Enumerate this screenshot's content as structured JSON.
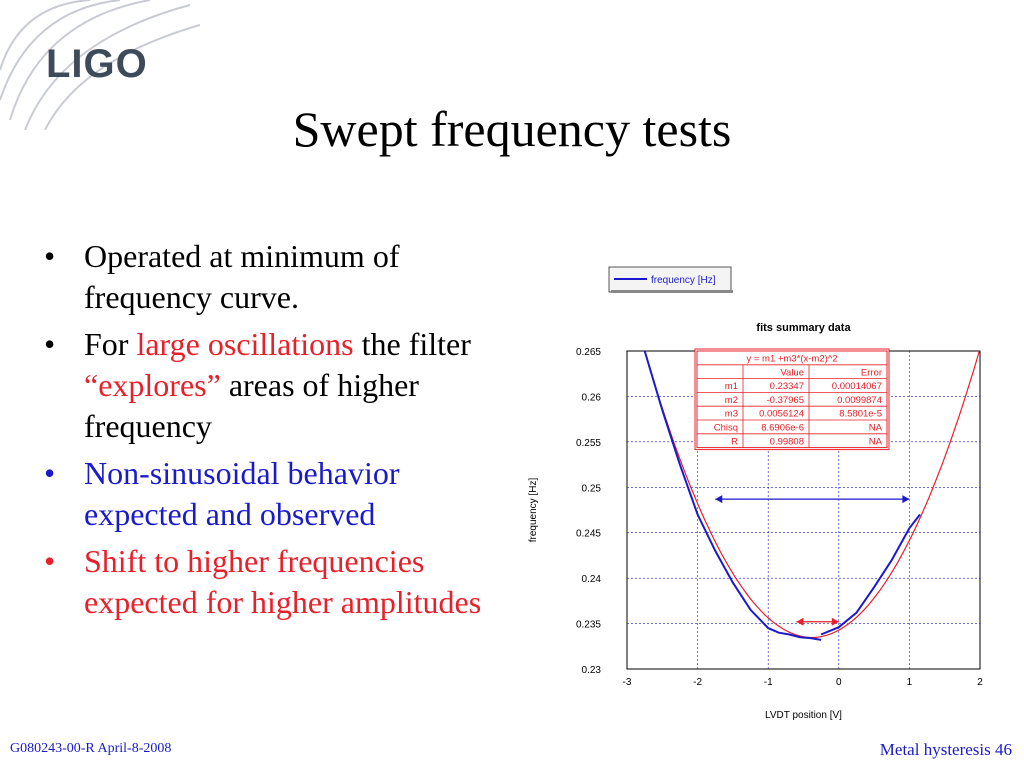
{
  "logo": {
    "text": "LIGO"
  },
  "slide": {
    "title": "Swept frequency tests"
  },
  "bullets": [
    {
      "parts": [
        {
          "text": "Operated at minimum of frequency curve.",
          "color": "#000000"
        }
      ]
    },
    {
      "parts": [
        {
          "text": "For ",
          "color": "#000000"
        },
        {
          "text": "large oscillations",
          "color": "#e8202a"
        },
        {
          "text": " the filter ",
          "color": "#000000"
        },
        {
          "text": "“explores”",
          "color": "#e8202a"
        },
        {
          "text": " areas of higher frequency",
          "color": "#000000"
        }
      ]
    },
    {
      "parts": [
        {
          "text": "Non-sinusoidal behavior expected and observed",
          "color": "#1a1acc"
        }
      ]
    },
    {
      "parts": [
        {
          "text": "Shift to higher frequencies expected for higher amplitudes",
          "color": "#e8202a"
        }
      ]
    }
  ],
  "footer": {
    "left": "G080243-00-R  April-8-2008",
    "right": "Metal hysteresis 46"
  },
  "chart_data": {
    "type": "line",
    "title": "fits summary data",
    "xlabel": "LVDT position [V]",
    "ylabel": "frequency [Hz]",
    "xlim": [
      -3,
      2
    ],
    "ylim": [
      0.23,
      0.265
    ],
    "xticks": [
      "-3",
      "-2",
      "-1",
      "0",
      "1",
      "2"
    ],
    "yticks": [
      "0.23",
      "0.235",
      "0.24",
      "0.245",
      "0.25",
      "0.255",
      "0.26",
      "0.265"
    ],
    "grid": true,
    "legend": {
      "position": "top-left",
      "entries": [
        "frequency [Hz]"
      ]
    },
    "fit": {
      "m1": 0.23347,
      "m2": -0.37965,
      "m3": 0.0056124,
      "color": "#e8202a",
      "x_range": [
        -2.77,
        2.02
      ]
    },
    "series": [
      {
        "name": "frequency [Hz]",
        "color": "#1a1acc",
        "x": [
          -2.75,
          -2.5,
          -2.25,
          -2.0,
          -1.75,
          -1.5,
          -1.25,
          -1.0,
          -0.85,
          -0.7,
          -0.55,
          -0.4,
          -0.25
        ],
        "y": [
          0.265,
          0.2585,
          0.2525,
          0.247,
          0.243,
          0.2395,
          0.2365,
          0.2345,
          0.234,
          0.2338,
          0.2335,
          0.2334,
          0.2332
        ]
      },
      {
        "name": "",
        "color": "#1a1acc",
        "x": [
          -0.25,
          0.0,
          0.25,
          0.5,
          0.75,
          1.0,
          1.15
        ],
        "y": [
          0.2338,
          0.2346,
          0.2362,
          0.239,
          0.242,
          0.2455,
          0.247
        ]
      }
    ],
    "fit_table": {
      "equation": "y = m1 +m3*(x-m2)^2",
      "headers": [
        "",
        "Value",
        "Error"
      ],
      "rows": [
        [
          "m1",
          "0.23347",
          "0.00014067"
        ],
        [
          "m2",
          "-0.37965",
          "0.0099874"
        ],
        [
          "m3",
          "0.0056124",
          "8.5801e-5"
        ],
        [
          "Chisq",
          "8.6906e-6",
          "NA"
        ],
        [
          "R",
          "0.99808",
          "NA"
        ]
      ]
    },
    "annotations": [
      {
        "type": "double-arrow",
        "color": "#1a1acc",
        "x": [
          -1.75,
          1.0
        ],
        "y": 0.2487
      },
      {
        "type": "double-arrow",
        "color": "#e8202a",
        "x": [
          -0.6,
          0.0
        ],
        "y": 0.2352
      }
    ]
  }
}
